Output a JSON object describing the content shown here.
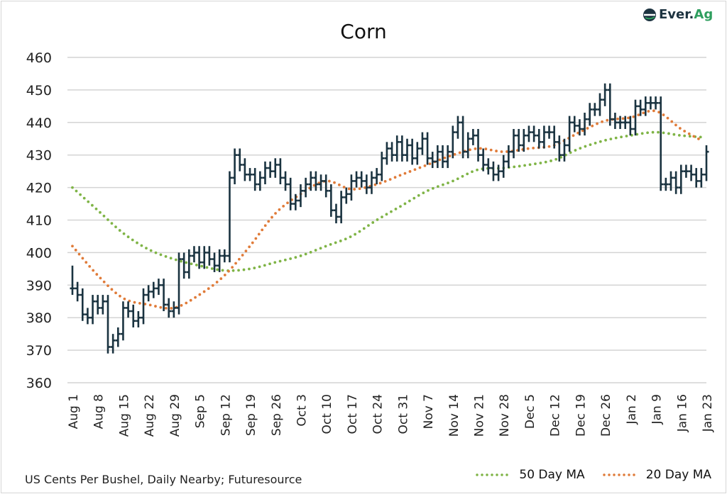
{
  "logo": {
    "part1": "Ever.",
    "part2": "Ag",
    "dark": "#1d3340",
    "green": "#2e9e5e"
  },
  "footer": "US Cents Per Bushel, Daily Nearby; Futuresource",
  "chart_data": {
    "type": "ohlc-bar+line",
    "title": "Corn",
    "ylabel": "US Cents Per Bushel",
    "ylim": [
      360,
      460
    ],
    "yticks": [
      360,
      370,
      380,
      390,
      400,
      410,
      420,
      430,
      440,
      450,
      460
    ],
    "grid": true,
    "legend_position": "bottom-right",
    "xtick_labels": [
      "Aug 1",
      "Aug 8",
      "Aug 15",
      "Aug 22",
      "Aug 29",
      "Sep 5",
      "Sep 12",
      "Sep 19",
      "Sep 26",
      "Oct 3",
      "Oct 10",
      "Oct 17",
      "Oct 24",
      "Oct 31",
      "Nov 7",
      "Nov 14",
      "Nov 21",
      "Nov 28",
      "Dec 5",
      "Dec 12",
      "Dec 19",
      "Dec 26",
      "Jan 2",
      "Jan 9",
      "Jan 16",
      "Jan 23"
    ],
    "trading_days_per_tick": 5,
    "price_color": "#1a3340",
    "bar_range_extension": 2,
    "close": [
      389,
      387,
      381,
      380,
      385,
      383,
      385,
      371,
      373,
      375,
      383,
      382,
      379,
      380,
      387,
      388,
      389,
      390,
      384,
      382,
      383,
      398,
      394,
      399,
      400,
      397,
      400,
      398,
      396,
      399,
      399,
      423,
      430,
      427,
      424,
      424,
      421,
      423,
      426,
      425,
      427,
      423,
      421,
      415,
      416,
      419,
      421,
      423,
      421,
      422,
      419,
      413,
      411,
      417,
      418,
      422,
      423,
      422,
      420,
      423,
      424,
      429,
      432,
      430,
      434,
      430,
      433,
      429,
      432,
      435,
      429,
      428,
      431,
      428,
      431,
      437,
      440,
      431,
      435,
      436,
      430,
      427,
      426,
      424,
      425,
      428,
      431,
      436,
      433,
      436,
      437,
      436,
      434,
      437,
      437,
      434,
      430,
      433,
      440,
      439,
      438,
      441,
      444,
      444,
      447,
      450,
      441,
      440,
      440,
      440,
      438,
      445,
      444,
      446,
      446,
      446,
      421,
      421,
      423,
      420,
      425,
      425,
      424,
      422,
      424,
      431
    ],
    "first_high": 396,
    "series": [
      {
        "name": "50 Day MA",
        "color": "#7fb446",
        "weekly_values": [
          420,
          413,
          406,
          401,
          398,
          396,
          394.5,
          395,
          397,
          399,
          402,
          405,
          410,
          414.5,
          419,
          422,
          425.5,
          426,
          427,
          428.5,
          432,
          434.5,
          436,
          437,
          436,
          435.5
        ]
      },
      {
        "name": "20 Day MA",
        "color": "#e07b39",
        "weekly_values": [
          402,
          393,
          386,
          384,
          383,
          387,
          393,
          402,
          412,
          418,
          422,
          419.5,
          421,
          424,
          427,
          430,
          432,
          431,
          432,
          433,
          437,
          440.5,
          441.5,
          443.5,
          438,
          434.5
        ]
      }
    ],
    "ma_last_point_week": 24.8
  }
}
